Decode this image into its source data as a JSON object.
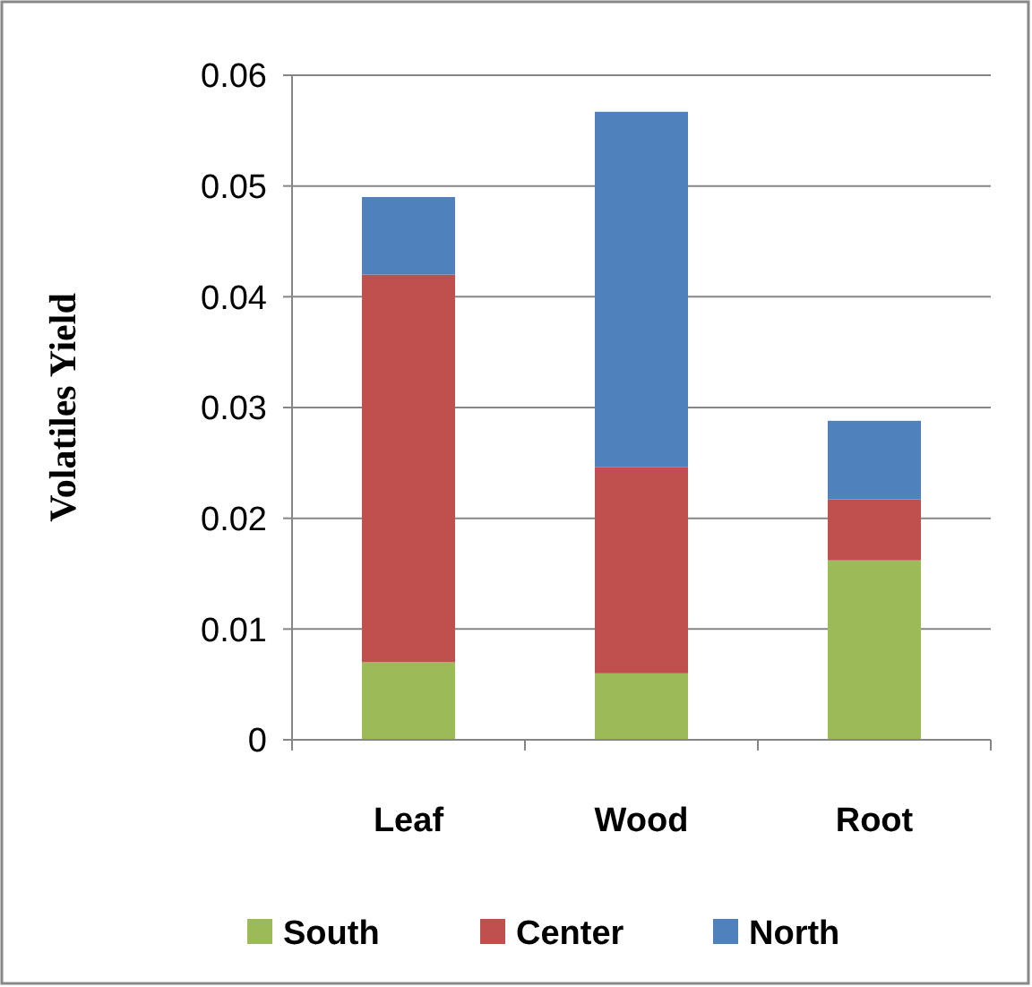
{
  "chart_data": {
    "type": "bar",
    "stacked": true,
    "ylabel": "Volatiles Yield",
    "categories": [
      "Leaf",
      "Wood",
      "Root"
    ],
    "series": [
      {
        "name": "South",
        "color": "#9bbb59",
        "values": [
          0.007,
          0.006,
          0.0162
        ]
      },
      {
        "name": "Center",
        "color": "#c0504d",
        "values": [
          0.035,
          0.0186,
          0.0055
        ]
      },
      {
        "name": "North",
        "color": "#4f81bd",
        "values": [
          0.007,
          0.0321,
          0.0071
        ]
      }
    ],
    "ylim": [
      0,
      0.06
    ],
    "yticks": [
      0,
      {
        "value": 0.01,
        "label": "0.01"
      },
      {
        "value": 0.02,
        "label": "0.02"
      },
      {
        "value": 0.03,
        "label": "0.03"
      },
      {
        "value": 0.04,
        "label": "0.04"
      },
      {
        "value": 0.05,
        "label": "0.05"
      },
      {
        "value": 0.06,
        "label": "0.06"
      }
    ],
    "grid": "y",
    "legend": "bottom"
  }
}
